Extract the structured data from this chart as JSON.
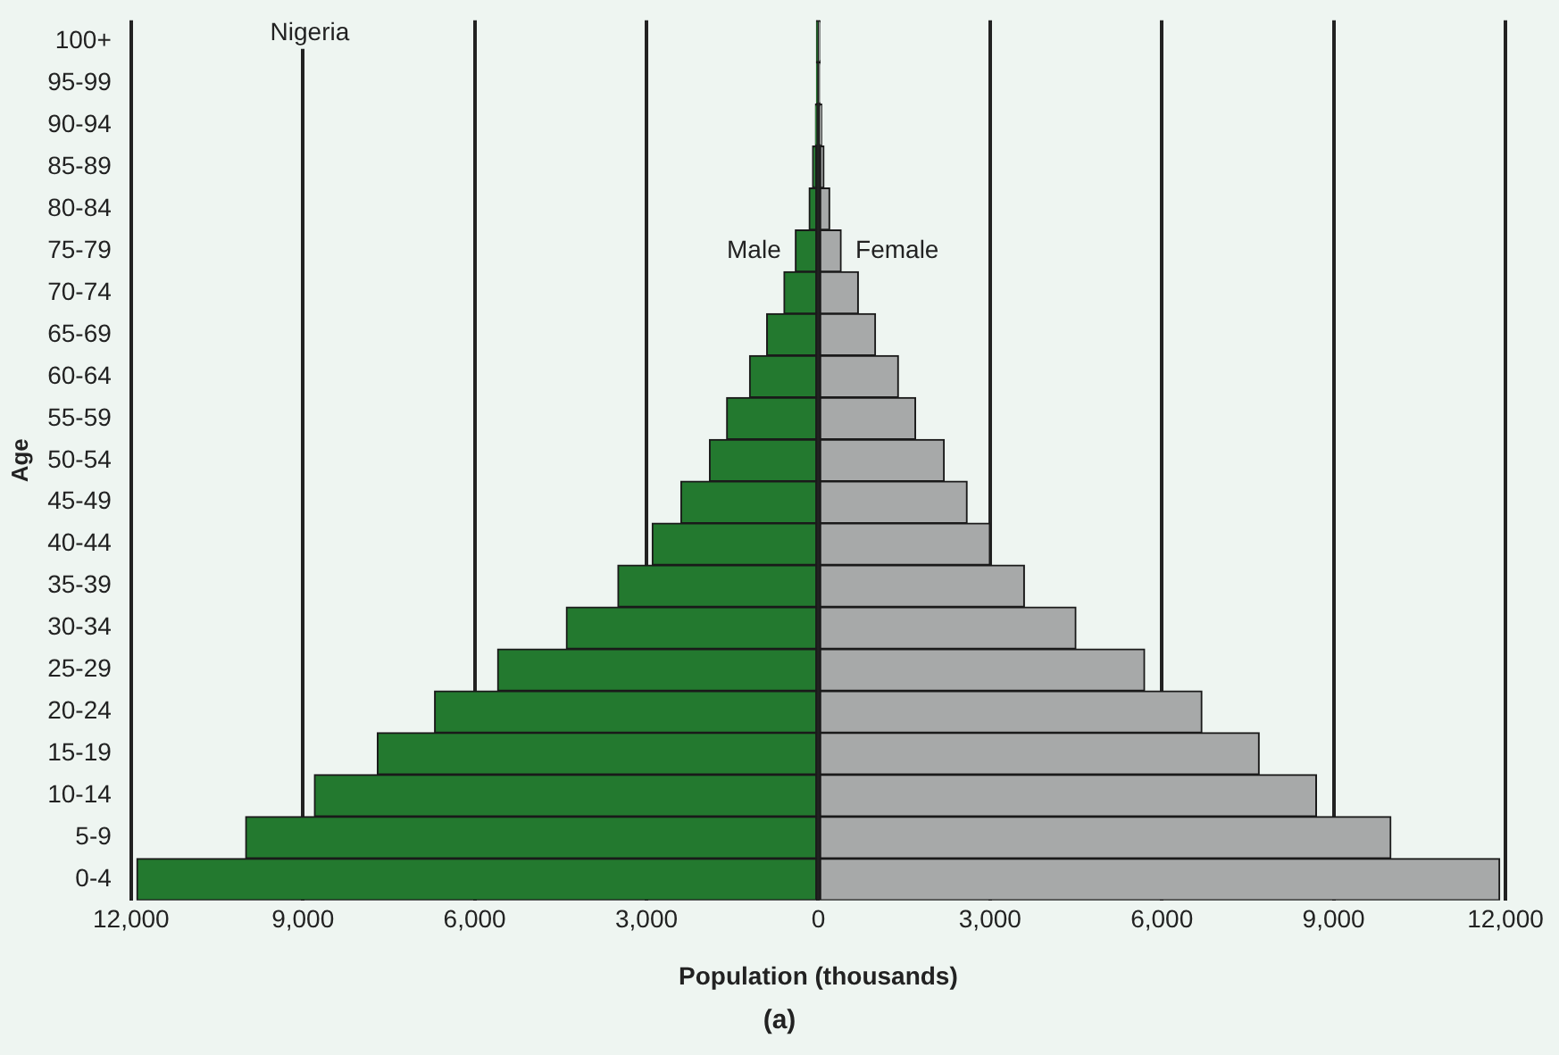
{
  "chart_data": {
    "type": "bar",
    "orientation": "horizontal",
    "stacked": true,
    "title": "Nigeria",
    "xlabel": "Population (thousands)",
    "ylabel": "Age",
    "categories": [
      "100+",
      "95-99",
      "90-94",
      "85-89",
      "80-84",
      "75-79",
      "70-74",
      "65-69",
      "60-64",
      "55-59",
      "50-54",
      "45-49",
      "40-44",
      "35-39",
      "30-34",
      "25-29",
      "20-24",
      "15-19",
      "10-14",
      "5-9",
      "0-4"
    ],
    "series": [
      {
        "name": "Male",
        "color": "#23792f",
        "values": [
          -10,
          -20,
          -50,
          -100,
          -160,
          -400,
          -600,
          -900,
          -1200,
          -1600,
          -1900,
          -2400,
          -2900,
          -3500,
          -4400,
          -5600,
          -6700,
          -7700,
          -8800,
          -10000,
          -11900
        ]
      },
      {
        "name": "Female",
        "color": "#a7a9a9",
        "values": [
          10,
          20,
          60,
          100,
          200,
          400,
          700,
          1000,
          1400,
          1700,
          2200,
          2600,
          3000,
          3600,
          4500,
          5700,
          6700,
          7700,
          8700,
          10000,
          11900
        ]
      }
    ],
    "xlim": [
      -12000,
      12000
    ],
    "xticks": [
      {
        "value": -12000,
        "label": "12,000"
      },
      {
        "value": -9000,
        "label": "9,000"
      },
      {
        "value": -6000,
        "label": "6,000"
      },
      {
        "value": -3000,
        "label": "3,000"
      },
      0,
      {
        "value": 3000,
        "label": "3,000"
      },
      {
        "value": 6000,
        "label": "6,000"
      },
      {
        "value": 9000,
        "label": "9,000"
      },
      {
        "value": 12000,
        "label": "12,000"
      }
    ],
    "grid": "x",
    "legend": false,
    "annotations": [
      "(a)"
    ]
  }
}
